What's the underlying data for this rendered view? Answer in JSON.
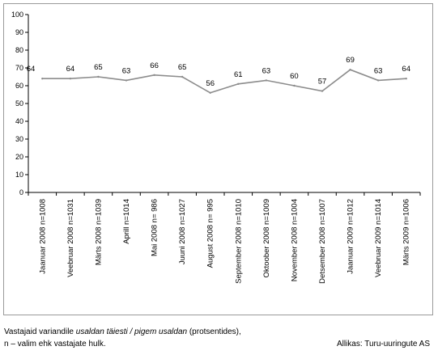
{
  "chart_data": {
    "type": "line",
    "categories": [
      "Jaanuar 2008 n=1008",
      "Veebruar 2008 n=1031",
      "Märts 2008 n=1039",
      "Aprill n=1014",
      "Mai 2008 n= 986",
      "Juuni 2008 n=1027",
      "August 2008 n= 995",
      "September 2008 n=1010",
      "Oktoober 2008 n=1009",
      "November 2008 n=1004",
      "Detsember 2008 n=1007",
      "Jaanuar 2009 n=1012",
      "Veebruar 2009 n=1014",
      "Märts 2009 n=1006"
    ],
    "values": [
      64,
      64,
      65,
      63,
      66,
      65,
      56,
      61,
      63,
      60,
      57,
      69,
      63,
      64
    ],
    "data_labels": [
      "64",
      "64",
      "65",
      "63",
      "66",
      "65",
      "56",
      "61",
      "63",
      "60",
      "57",
      "69",
      "63",
      "64"
    ],
    "y_ticks": [
      "0",
      "10",
      "20",
      "30",
      "40",
      "50",
      "60",
      "70",
      "80",
      "90",
      "100"
    ],
    "ylim": [
      0,
      100
    ],
    "grid": false,
    "legend": "none",
    "line_color": "#8c8c8c"
  },
  "footer": {
    "line1_prefix": "Vastajaid variandile ",
    "line1_italic": "usaldan täiesti / pigem usaldan",
    "line1_suffix": " (protsentides),",
    "line2": "n – valim ehk vastajate hulk.",
    "source": "Allikas: Turu-uuringute AS"
  }
}
